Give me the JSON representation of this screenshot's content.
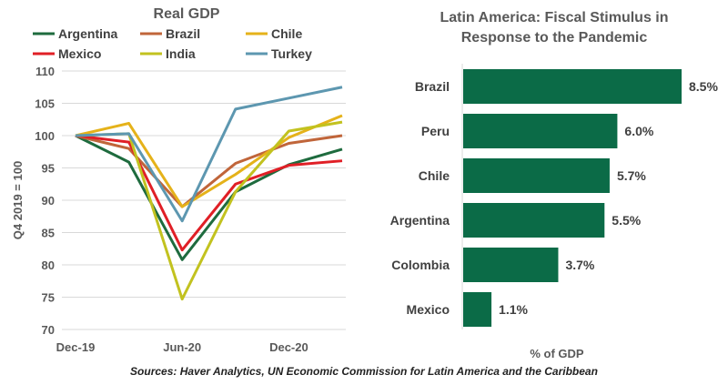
{
  "chart_data": [
    {
      "type": "line",
      "title": "Real GDP",
      "ylabel": "Q4 2019 = 100",
      "ylim": [
        70,
        110
      ],
      "yticks": [
        70,
        75,
        80,
        85,
        90,
        95,
        100,
        105,
        110
      ],
      "x": [
        "Dec-19",
        "Mar-20",
        "Jun-20",
        "Sep-20",
        "Dec-20",
        "Mar-21"
      ],
      "xtick_labels": [
        "Dec-19",
        "Jun-20",
        "Dec-20"
      ],
      "grid": "horizontal",
      "legend": "top",
      "series": [
        {
          "name": "Argentina",
          "color": "#1e6b3e",
          "values": [
            100,
            95.9,
            80.8,
            91.3,
            95.5,
            97.9
          ]
        },
        {
          "name": "Brazil",
          "color": "#c0653a",
          "values": [
            100,
            98.0,
            89.0,
            95.7,
            98.8,
            100.0
          ]
        },
        {
          "name": "Chile",
          "color": "#e5b21a",
          "values": [
            100,
            101.9,
            89.0,
            94.0,
            99.7,
            103.1
          ]
        },
        {
          "name": "Mexico",
          "color": "#e01f26",
          "values": [
            100,
            99.0,
            82.3,
            92.5,
            95.4,
            96.1
          ]
        },
        {
          "name": "India",
          "color": "#c2c21f",
          "values": [
            100,
            100.3,
            74.7,
            91.3,
            100.7,
            102.1
          ]
        },
        {
          "name": "Turkey",
          "color": "#5d97b0",
          "values": [
            100,
            100.3,
            86.8,
            104.1,
            105.8,
            107.5
          ]
        }
      ]
    },
    {
      "type": "bar",
      "orientation": "horizontal",
      "title": [
        "Latin America: Fiscal Stimulus in",
        "Response to the Pandemic"
      ],
      "categories": [
        "Brazil",
        "Peru",
        "Chile",
        "Argentina",
        "Colombia",
        "Mexico"
      ],
      "values": [
        8.5,
        6.0,
        5.7,
        5.5,
        3.7,
        1.1
      ],
      "data_labels": [
        "8.5%",
        "6.0%",
        "5.7%",
        "5.5%",
        "3.7%",
        "1.1%"
      ],
      "xlabel": "% of GDP",
      "xlim": [
        0,
        8.5
      ],
      "color": "#0b6b47"
    }
  ],
  "source": "Sources: Haver Analytics, UN Economic Commission for Latin America and the Caribbean"
}
